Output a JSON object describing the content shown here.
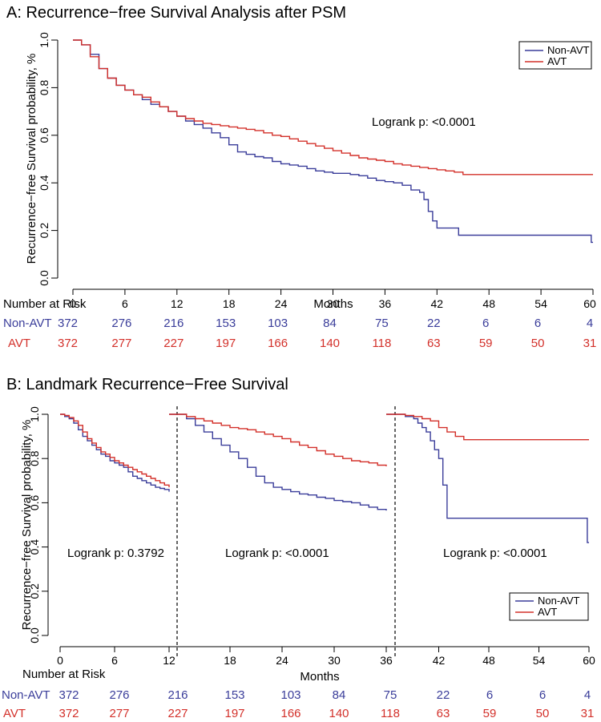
{
  "colors": {
    "non_avt": "#3a3d9a",
    "avt": "#d3302a",
    "axis": "#000000"
  },
  "chart_data": [
    {
      "type": "line",
      "title": "A: Recurrence−free Survival Analysis after PSM",
      "xlabel": "Months",
      "ylabel": "Recurrence−free Survival probability, %",
      "xlim": [
        0,
        60
      ],
      "ylim": [
        0,
        1
      ],
      "xticks": [
        "0",
        "6",
        "12",
        "18",
        "24",
        "30",
        "36",
        "42",
        "48",
        "54",
        "60"
      ],
      "yticks": [
        "0.0",
        "0.2",
        "0.4",
        "0.6",
        "0.8",
        "1.0"
      ],
      "annotation": "Logrank p: <0.0001",
      "legend": {
        "position": "top-right",
        "entries": [
          "Non-AVT",
          "AVT"
        ]
      },
      "series": [
        {
          "name": "Non-AVT",
          "x": [
            0,
            1,
            2,
            3,
            4,
            5,
            6,
            7,
            8,
            9,
            10,
            11,
            12,
            13,
            14,
            15,
            16,
            17,
            18,
            19,
            20,
            21,
            22,
            23,
            24,
            25,
            26,
            27,
            28,
            29,
            30,
            31,
            32,
            33,
            34,
            35,
            36,
            37,
            38,
            39,
            40,
            40.5,
            41,
            41.5,
            42,
            43,
            44,
            44.5,
            45,
            48,
            52,
            56,
            59.5,
            59.8,
            60
          ],
          "y": [
            1.0,
            0.98,
            0.94,
            0.88,
            0.84,
            0.81,
            0.79,
            0.77,
            0.75,
            0.73,
            0.72,
            0.7,
            0.68,
            0.66,
            0.645,
            0.63,
            0.61,
            0.59,
            0.56,
            0.53,
            0.52,
            0.51,
            0.505,
            0.49,
            0.48,
            0.475,
            0.47,
            0.46,
            0.45,
            0.445,
            0.44,
            0.44,
            0.435,
            0.43,
            0.42,
            0.41,
            0.405,
            0.4,
            0.39,
            0.37,
            0.36,
            0.33,
            0.28,
            0.24,
            0.21,
            0.21,
            0.21,
            0.18,
            0.18,
            0.18,
            0.18,
            0.18,
            0.18,
            0.15,
            0.15
          ]
        },
        {
          "name": "AVT",
          "x": [
            0,
            1,
            2,
            3,
            4,
            5,
            6,
            7,
            8,
            9,
            10,
            11,
            12,
            13,
            14,
            15,
            16,
            17,
            18,
            19,
            20,
            21,
            22,
            23,
            24,
            25,
            26,
            27,
            28,
            29,
            30,
            31,
            32,
            33,
            34,
            35,
            36,
            37,
            38,
            39,
            40,
            41,
            42,
            43,
            44,
            45,
            48,
            52,
            56,
            60
          ],
          "y": [
            1.0,
            0.98,
            0.93,
            0.88,
            0.84,
            0.81,
            0.79,
            0.77,
            0.76,
            0.74,
            0.72,
            0.7,
            0.68,
            0.67,
            0.66,
            0.65,
            0.645,
            0.64,
            0.635,
            0.63,
            0.625,
            0.62,
            0.61,
            0.6,
            0.595,
            0.585,
            0.575,
            0.565,
            0.555,
            0.545,
            0.535,
            0.525,
            0.515,
            0.505,
            0.5,
            0.495,
            0.49,
            0.48,
            0.475,
            0.47,
            0.465,
            0.46,
            0.455,
            0.45,
            0.445,
            0.435,
            0.435,
            0.435,
            0.435,
            0.435
          ]
        }
      ],
      "risk_table": {
        "title": "Number at Risk",
        "rows": [
          {
            "label": "Non-AVT",
            "values": [
              "372",
              "276",
              "216",
              "153",
              "103",
              "84",
              "75",
              "22",
              "6",
              "6",
              "4"
            ]
          },
          {
            "label": "AVT",
            "values": [
              "372",
              "277",
              "227",
              "197",
              "166",
              "140",
              "118",
              "63",
              "59",
              "50",
              "31"
            ]
          }
        ]
      }
    },
    {
      "type": "line",
      "title": "B: Landmark Recurrence−Free Survival",
      "xlabel": "Months",
      "ylabel": "Recurrence−free Survival probability, %",
      "xlim": [
        0,
        60
      ],
      "ylim": [
        0,
        1
      ],
      "yticks": [
        "0.0",
        "0.2",
        "0.4",
        "0.6",
        "0.8",
        "1.0"
      ],
      "legend": {
        "position": "bottom-right",
        "entries": [
          "Non-AVT",
          "AVT"
        ]
      },
      "landmarks": [
        12,
        36
      ],
      "panels": [
        {
          "xlim": [
            0,
            12
          ],
          "xticks": [
            "0",
            "6",
            "12"
          ],
          "annotation": "Logrank p: 0.3792",
          "series": [
            {
              "name": "Non-AVT",
              "x": [
                0,
                0.5,
                1,
                1.5,
                2,
                2.5,
                3,
                3.5,
                4,
                4.5,
                5,
                5.5,
                6,
                6.5,
                7,
                7.5,
                8,
                8.5,
                9,
                9.5,
                10,
                10.5,
                11,
                11.5,
                12
              ],
              "y": [
                1.0,
                0.99,
                0.98,
                0.96,
                0.93,
                0.9,
                0.88,
                0.86,
                0.84,
                0.82,
                0.81,
                0.79,
                0.78,
                0.77,
                0.76,
                0.74,
                0.72,
                0.71,
                0.7,
                0.69,
                0.68,
                0.67,
                0.665,
                0.66,
                0.65
              ]
            },
            {
              "name": "AVT",
              "x": [
                0,
                0.5,
                1,
                1.5,
                2,
                2.5,
                3,
                3.5,
                4,
                4.5,
                5,
                5.5,
                6,
                6.5,
                7,
                7.5,
                8,
                8.5,
                9,
                9.5,
                10,
                10.5,
                11,
                11.5,
                12
              ],
              "y": [
                1.0,
                0.995,
                0.985,
                0.97,
                0.95,
                0.92,
                0.89,
                0.87,
                0.85,
                0.83,
                0.82,
                0.805,
                0.79,
                0.78,
                0.77,
                0.76,
                0.75,
                0.74,
                0.73,
                0.72,
                0.71,
                0.7,
                0.69,
                0.68,
                0.67
              ]
            }
          ]
        },
        {
          "xlim": [
            12,
            36
          ],
          "xticks": [
            "18",
            "24",
            "30",
            "36"
          ],
          "annotation": "Logrank p: <0.0001",
          "series": [
            {
              "name": "Non-AVT",
              "x": [
                12,
                13,
                14,
                15,
                16,
                17,
                18,
                19,
                20,
                21,
                22,
                23,
                24,
                25,
                26,
                27,
                28,
                29,
                30,
                31,
                32,
                33,
                34,
                35,
                36
              ],
              "y": [
                1.0,
                0.98,
                0.95,
                0.92,
                0.89,
                0.86,
                0.83,
                0.8,
                0.76,
                0.72,
                0.69,
                0.67,
                0.66,
                0.65,
                0.64,
                0.635,
                0.625,
                0.62,
                0.61,
                0.605,
                0.6,
                0.59,
                0.58,
                0.57,
                0.565
              ]
            },
            {
              "name": "AVT",
              "x": [
                12,
                13,
                14,
                15,
                16,
                17,
                18,
                19,
                20,
                21,
                22,
                23,
                24,
                25,
                26,
                27,
                28,
                29,
                30,
                31,
                32,
                33,
                34,
                35,
                36
              ],
              "y": [
                1.0,
                0.99,
                0.98,
                0.97,
                0.96,
                0.95,
                0.94,
                0.935,
                0.93,
                0.92,
                0.91,
                0.9,
                0.89,
                0.875,
                0.86,
                0.85,
                0.835,
                0.82,
                0.81,
                0.8,
                0.79,
                0.785,
                0.78,
                0.77,
                0.765
              ]
            }
          ]
        },
        {
          "xlim": [
            36,
            60
          ],
          "xticks": [
            "42",
            "48",
            "54",
            "60"
          ],
          "annotation": "Logrank p: <0.0001",
          "series": [
            {
              "name": "Non-AVT",
              "x": [
                36,
                37,
                38,
                39,
                39.5,
                40,
                40.5,
                41,
                41.5,
                42,
                42.5,
                43,
                44,
                48,
                52,
                56,
                59.5,
                59.8,
                60
              ],
              "y": [
                1.0,
                1.0,
                0.99,
                0.98,
                0.96,
                0.94,
                0.92,
                0.88,
                0.84,
                0.8,
                0.68,
                0.53,
                0.53,
                0.53,
                0.53,
                0.53,
                0.53,
                0.42,
                0.42
              ]
            },
            {
              "name": "AVT",
              "x": [
                36,
                37,
                38,
                39,
                40,
                41,
                42,
                43,
                44,
                45,
                48,
                52,
                56,
                60
              ],
              "y": [
                1.0,
                1.0,
                0.995,
                0.99,
                0.98,
                0.97,
                0.94,
                0.92,
                0.9,
                0.885,
                0.885,
                0.885,
                0.885,
                0.885
              ]
            }
          ]
        }
      ],
      "risk_table": {
        "title": "Number at Risk",
        "rows": [
          {
            "label": "Non-AVT",
            "values": [
              "372",
              "276",
              "216",
              "153",
              "103",
              "84",
              "75",
              "22",
              "6",
              "6",
              "4"
            ]
          },
          {
            "label": "AVT",
            "values": [
              "372",
              "277",
              "227",
              "197",
              "166",
              "140",
              "118",
              "63",
              "59",
              "50",
              "31"
            ]
          }
        ]
      }
    }
  ]
}
